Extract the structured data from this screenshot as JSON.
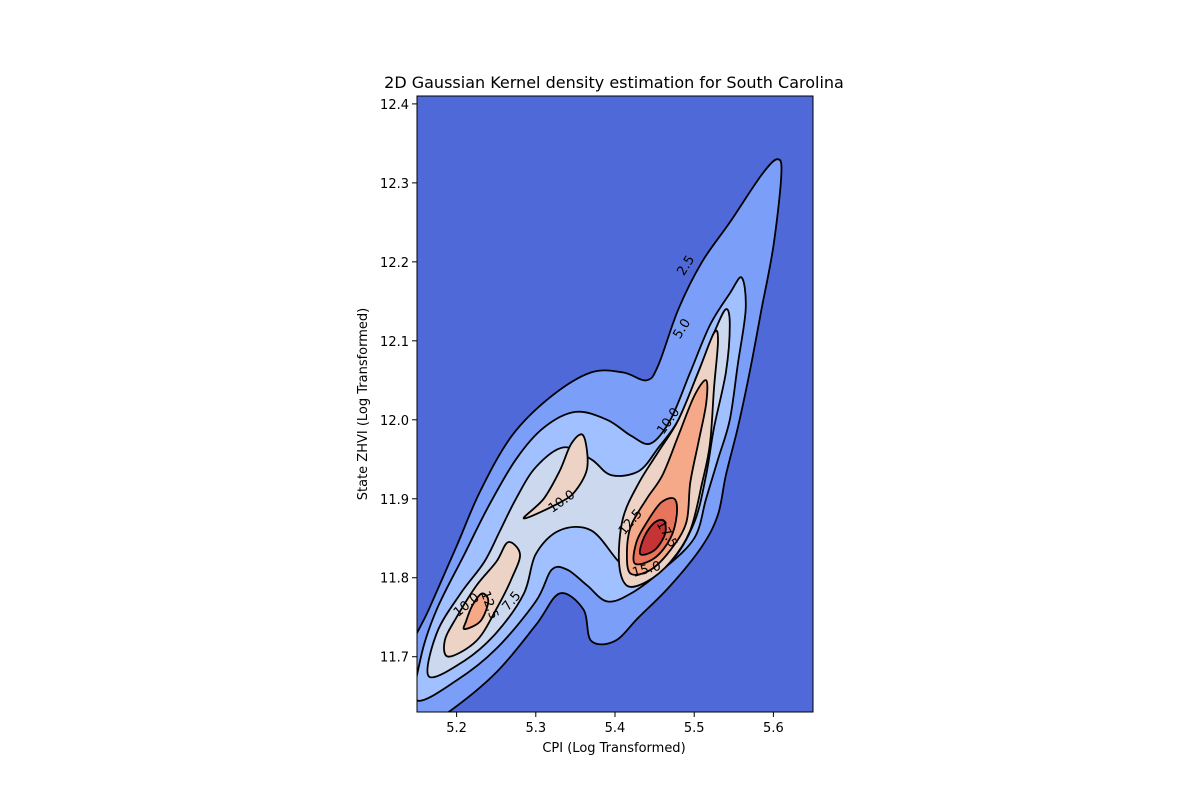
{
  "chart_data": {
    "type": "contour",
    "title": "2D Gaussian Kernel density estimation for South Carolina",
    "xlabel": "CPI (Log Transformed)",
    "ylabel": "State ZHVI (Log Transformed)",
    "xlim": [
      5.15,
      5.65
    ],
    "ylim": [
      11.63,
      12.41
    ],
    "x_ticks": [
      5.2,
      5.3,
      5.4,
      5.5,
      5.6
    ],
    "y_ticks": [
      11.7,
      11.8,
      11.9,
      12.0,
      12.1,
      12.2,
      12.3,
      12.4
    ],
    "x_tick_labels": [
      "5.2",
      "5.3",
      "5.4",
      "5.5",
      "5.6"
    ],
    "y_tick_labels": [
      "11.7",
      "11.8",
      "11.9",
      "12.0",
      "12.1",
      "12.2",
      "12.3",
      "12.4"
    ],
    "colormap": "coolwarm",
    "grid": false,
    "background_color": "#4f69d9",
    "levels": [
      {
        "level": 2.5,
        "color": "#7b9ff9"
      },
      {
        "level": 5.0,
        "color": "#a1c0ff"
      },
      {
        "level": 7.5,
        "color": "#cbd8ee"
      },
      {
        "level": 10.0,
        "color": "#ecd3c5"
      },
      {
        "level": 12.5,
        "color": "#f5a988"
      },
      {
        "level": 15.0,
        "color": "#e7745b"
      },
      {
        "level": 17.5,
        "color": "#c53334"
      }
    ],
    "peaks": [
      {
        "x": 5.447,
        "y": 11.845
      },
      {
        "x": 5.225,
        "y": 11.755
      },
      {
        "x": 5.335,
        "y": 11.93
      }
    ],
    "contour_labels": [
      {
        "text": "2.5",
        "x": 5.49,
        "y": 12.195,
        "angle": -58
      },
      {
        "text": "5.0",
        "x": 5.485,
        "y": 12.115,
        "angle": -58
      },
      {
        "text": "10.0",
        "x": 5.468,
        "y": 11.998,
        "angle": -55
      },
      {
        "text": "10.0",
        "x": 5.333,
        "y": 11.896,
        "angle": -35
      },
      {
        "text": "12.5",
        "x": 5.42,
        "y": 11.87,
        "angle": -50
      },
      {
        "text": "17.5",
        "x": 5.465,
        "y": 11.855,
        "angle": 60
      },
      {
        "text": "15.0",
        "x": 5.44,
        "y": 11.81,
        "angle": -15
      },
      {
        "text": "10.0",
        "x": 5.213,
        "y": 11.765,
        "angle": -40
      },
      {
        "text": "12.5",
        "x": 5.241,
        "y": 11.765,
        "angle": 70
      },
      {
        "text": "7.5",
        "x": 5.27,
        "y": 11.77,
        "angle": -50
      }
    ]
  }
}
